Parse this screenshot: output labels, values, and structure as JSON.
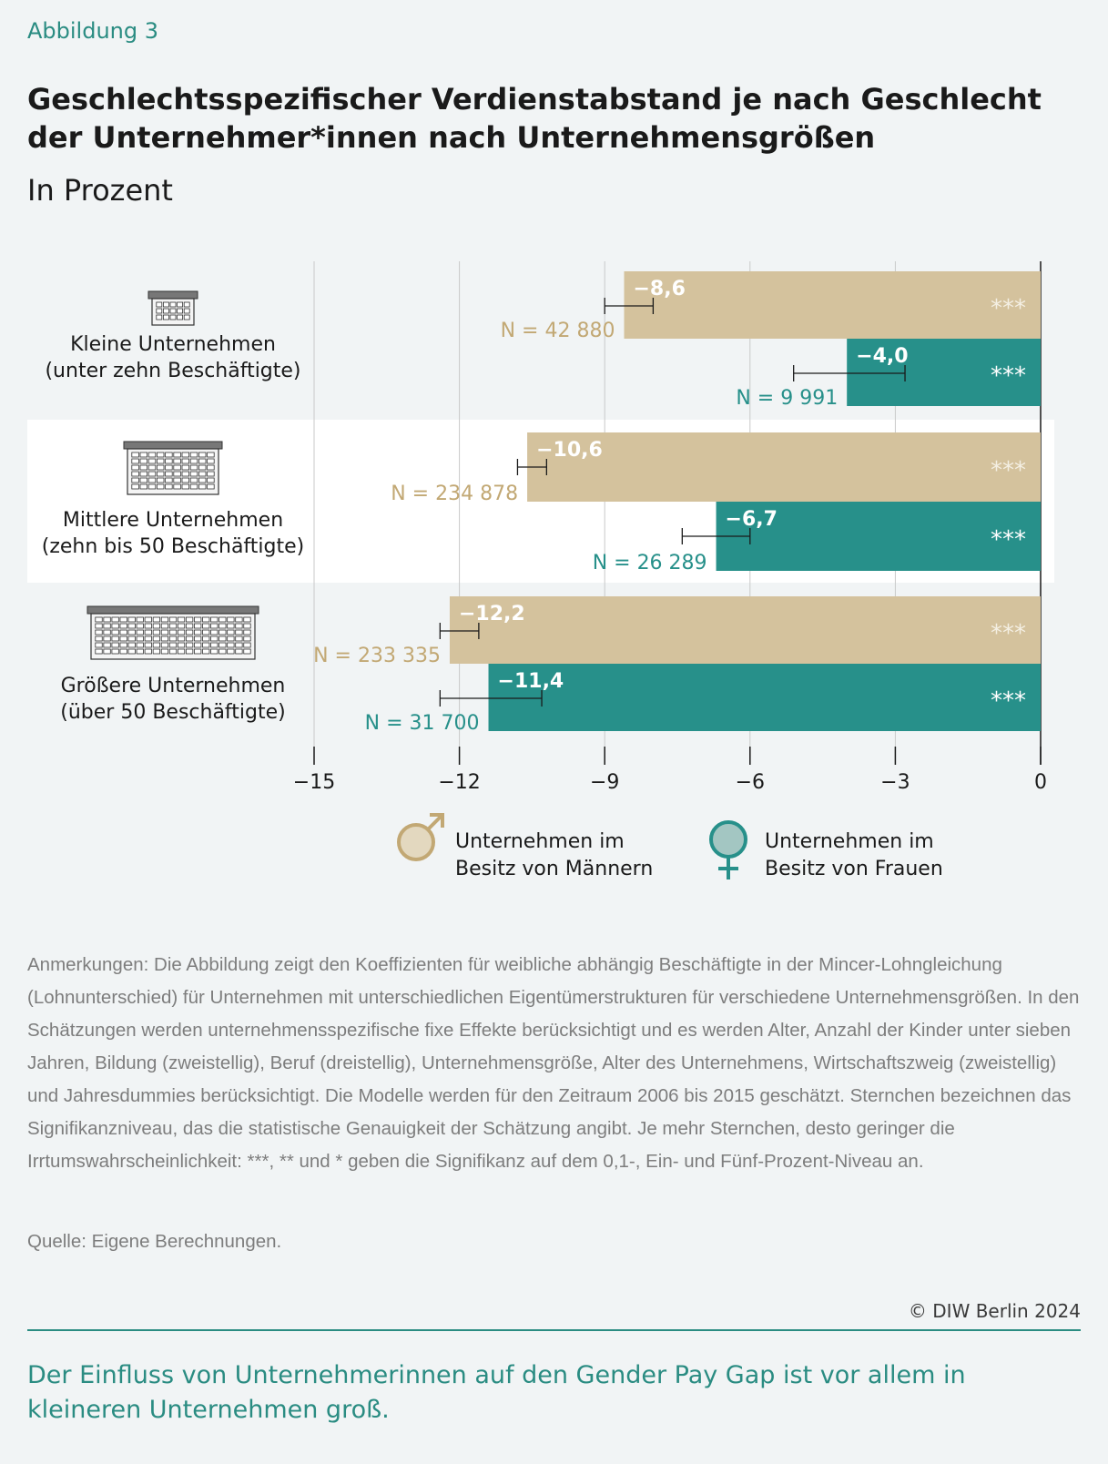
{
  "figure_label": "Abbildung 3",
  "title": "Geschlechtsspezifischer Verdienstabstand je nach Geschlecht der Unternehmer*innen nach Unternehmensgrößen",
  "subtitle": "In Prozent",
  "colors": {
    "men": "#d4c29d",
    "women": "#27908a",
    "men_text": "#c2a874",
    "women_text": "#27908a",
    "band": "#ffffff"
  },
  "chart_data": {
    "type": "bar",
    "orientation": "horizontal",
    "xlim": [
      -15,
      0
    ],
    "ticks": [
      -15,
      -12,
      -9,
      -6,
      -3,
      0
    ],
    "tick_labels": [
      "−15",
      "−12",
      "−9",
      "−6",
      "−3",
      "0"
    ],
    "grid": true,
    "categories": [
      {
        "label_line1": "Kleine Unternehmen",
        "label_line2": "(unter zehn Beschäftigte)",
        "icon": "small-building-icon"
      },
      {
        "label_line1": "Mittlere Unternehmen",
        "label_line2": "(zehn bis 50 Beschäftigte)",
        "icon": "medium-building-icon"
      },
      {
        "label_line1": "Größere Unternehmen",
        "label_line2": "(über 50 Beschäftigte)",
        "icon": "large-building-icon"
      }
    ],
    "series": [
      {
        "name": "Unternehmen im Besitz von Männern",
        "values": [
          -8.6,
          -10.6,
          -12.2
        ],
        "value_labels": [
          "−8,6",
          "−10,6",
          "−12,2"
        ],
        "error_low": [
          -9.0,
          -10.8,
          -12.4
        ],
        "error_high": [
          -8.0,
          -10.2,
          -11.6
        ],
        "n_labels": [
          "N = 42 880",
          "N = 234 878",
          "N = 233 335"
        ],
        "significance": [
          "***",
          "***",
          "***"
        ]
      },
      {
        "name": "Unternehmen im Besitz von Frauen",
        "values": [
          -4.0,
          -6.7,
          -11.4
        ],
        "value_labels": [
          "−4,0",
          "−6,7",
          "−11,4"
        ],
        "error_low": [
          -5.1,
          -7.4,
          -12.4
        ],
        "error_high": [
          -2.8,
          -6.0,
          -10.3
        ],
        "n_labels": [
          "N = 9 991",
          "N = 26 289",
          "N = 31 700"
        ],
        "significance": [
          "***",
          "***",
          "***"
        ]
      }
    ]
  },
  "legend": {
    "men_line1": "Unternehmen im",
    "men_line2": "Besitz von Männern",
    "women_line1": "Unternehmen im",
    "women_line2": "Besitz von Frauen",
    "men_icon": "male-symbol-icon",
    "women_icon": "female-symbol-icon"
  },
  "notes": "Anmerkungen: Die Abbildung zeigt den Koeffizienten für weibliche abhängig Beschäftigte in der Mincer-Lohngleichung (Lohnunterschied) für Unternehmen mit unterschiedlichen Eigentümerstrukturen für verschiedene Unternehmensgrößen. In den Schätzungen werden unternehmensspezifische fixe Effekte berücksichtigt und es werden Alter, Anzahl der Kinder unter sieben Jahren, Bildung (zweistellig), Beruf (dreistellig), Unternehmensgröße, Alter des Unternehmens, Wirtschaftszweig (zweistellig) und Jahresdummies berücksichtigt. Die Modelle werden für den Zeitraum 2006 bis 2015 geschätzt. Sternchen bezeichnen das Signifikanzniveau, das die statistische Genauigkeit der Schätzung angibt. Je mehr Sternchen, desto geringer die Irrtumswahrscheinlichkeit: ***, ** und * geben die Signifikanz auf dem 0,1-, Ein- und Fünf-Prozent-Niveau an.",
  "source": "Quelle: Eigene Berechnungen.",
  "copyright": "© DIW Berlin 2024",
  "takeaway": "Der Einfluss von Unternehmerinnen auf den Gender Pay Gap ist vor allem in kleineren Unternehmen groß."
}
